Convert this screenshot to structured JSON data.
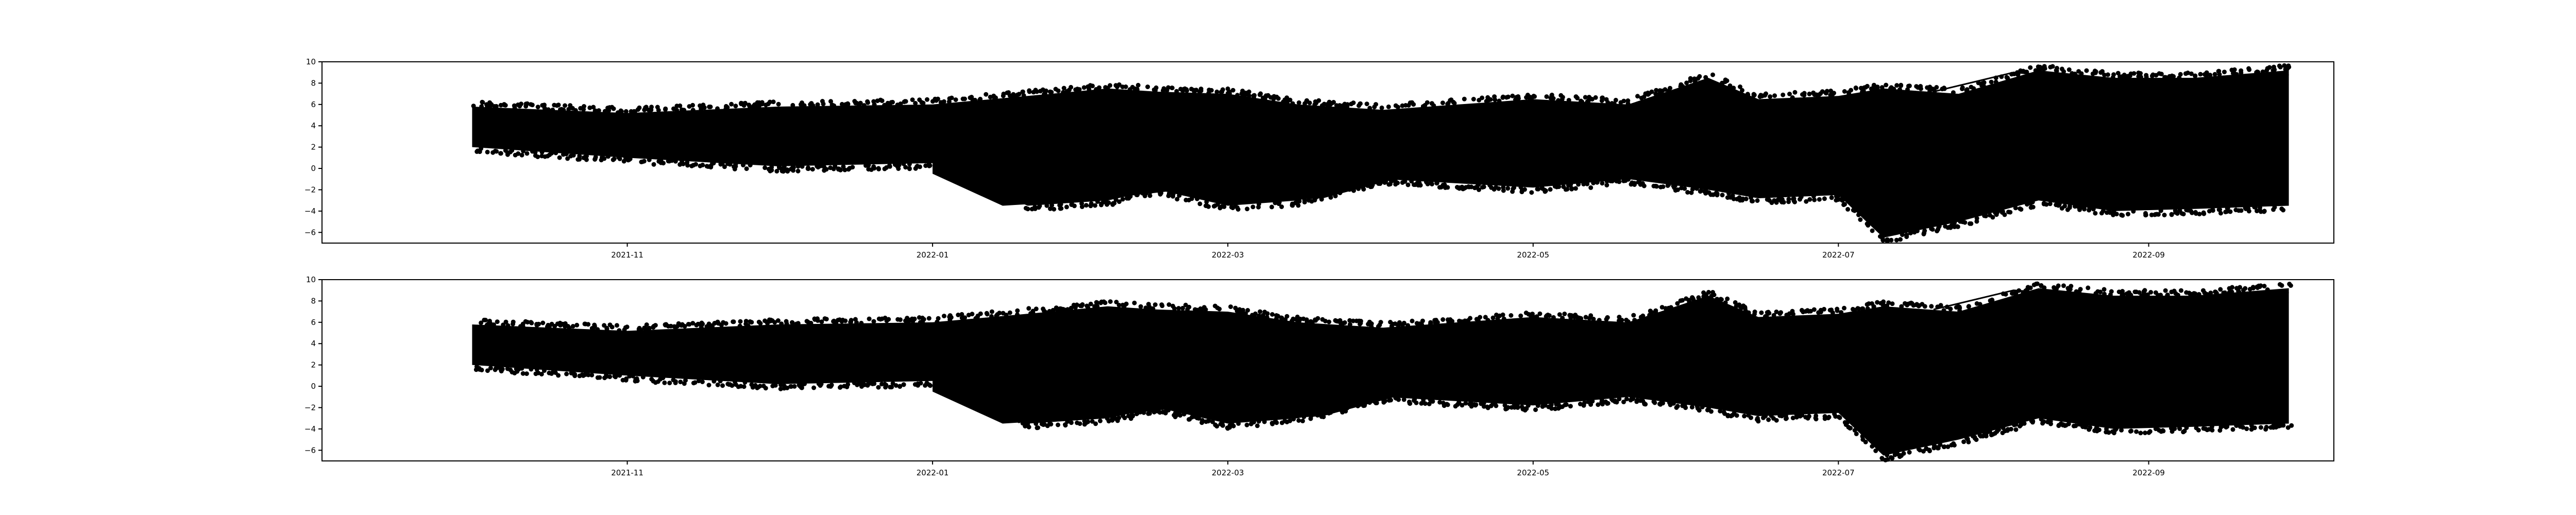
{
  "chart_data": [
    {
      "type": "scatter",
      "title": "",
      "xlabel": "",
      "ylabel": "",
      "grid": false,
      "marker_color": "#000000",
      "xlim": [
        "2021-09-01",
        "2022-10-08"
      ],
      "ylim": [
        -7,
        10
      ],
      "x_ticks": [
        "2021-11",
        "2022-01",
        "2022-03",
        "2022-05",
        "2022-07",
        "2022-09"
      ],
      "y_ticks": [
        -6,
        -4,
        -2,
        0,
        2,
        4,
        6,
        8,
        10
      ],
      "envelope": {
        "dates": [
          "2021-10-01",
          "2021-11-01",
          "2021-12-01",
          "2022-01-01",
          "2022-01-20",
          "2022-02-05",
          "2022-02-15",
          "2022-03-01",
          "2022-03-15",
          "2022-04-01",
          "2022-05-01",
          "2022-05-20",
          "2022-06-05",
          "2022-06-15",
          "2022-07-01",
          "2022-07-10",
          "2022-07-25",
          "2022-08-10",
          "2022-08-25",
          "2022-09-10",
          "2022-09-29"
        ],
        "upper": [
          5.8,
          5.2,
          5.8,
          6.0,
          6.8,
          7.5,
          7.2,
          7.0,
          6.0,
          5.5,
          6.5,
          6.0,
          8.5,
          6.5,
          6.8,
          7.5,
          7.0,
          9.2,
          8.5,
          8.5,
          9.2
        ],
        "lower": [
          2.0,
          1.0,
          0.2,
          0.5,
          -3.5,
          -3.0,
          -2.0,
          -3.5,
          -3.0,
          -1.0,
          -1.8,
          -1.0,
          -2.0,
          -2.8,
          -2.5,
          -6.5,
          -5.0,
          -3.0,
          -4.0,
          -3.8,
          -3.5
        ]
      },
      "secondary_band": {
        "dates": [
          "2022-01-01",
          "2022-01-15",
          "2022-02-01",
          "2022-02-20",
          "2022-03-05",
          "2022-03-20",
          "2022-04-05"
        ],
        "upper": [
          0.5,
          -0.5,
          -1.0,
          -0.5,
          -0.5,
          -0.2,
          0.0
        ],
        "lower": [
          -0.5,
          -3.5,
          -3.0,
          -2.0,
          -3.2,
          -2.8,
          -0.8
        ]
      },
      "upper_branch": {
        "dates": [
          "2022-07-20",
          "2022-08-05",
          "2022-08-20",
          "2022-09-05",
          "2022-09-29"
        ],
        "values": [
          7.2,
          9.0,
          8.5,
          8.0,
          8.8
        ]
      }
    },
    {
      "type": "scatter",
      "title": "",
      "xlabel": "",
      "ylabel": "",
      "grid": false,
      "marker_color": "#000000",
      "xlim": [
        "2021-09-01",
        "2022-10-08"
      ],
      "ylim": [
        -7,
        10
      ],
      "x_ticks": [
        "2021-11",
        "2022-01",
        "2022-03",
        "2022-05",
        "2022-07",
        "2022-09"
      ],
      "y_ticks": [
        -6,
        -4,
        -2,
        0,
        2,
        4,
        6,
        8,
        10
      ],
      "envelope": {
        "dates": [
          "2021-10-01",
          "2021-11-01",
          "2021-12-01",
          "2022-01-01",
          "2022-01-20",
          "2022-02-05",
          "2022-02-15",
          "2022-03-01",
          "2022-03-15",
          "2022-04-01",
          "2022-05-01",
          "2022-05-20",
          "2022-06-05",
          "2022-06-15",
          "2022-07-01",
          "2022-07-10",
          "2022-07-25",
          "2022-08-10",
          "2022-08-25",
          "2022-09-10",
          "2022-09-29"
        ],
        "upper": [
          5.8,
          5.2,
          5.8,
          6.0,
          6.8,
          7.5,
          7.2,
          7.0,
          6.0,
          5.5,
          6.5,
          6.0,
          8.5,
          6.5,
          6.8,
          7.5,
          7.0,
          9.2,
          8.5,
          8.5,
          9.2
        ],
        "lower": [
          2.0,
          1.0,
          0.2,
          0.5,
          -3.5,
          -3.0,
          -2.0,
          -3.5,
          -3.0,
          -1.0,
          -1.8,
          -1.0,
          -2.0,
          -2.8,
          -2.5,
          -6.5,
          -5.0,
          -3.0,
          -4.0,
          -3.8,
          -3.5
        ]
      },
      "secondary_band": {
        "dates": [
          "2022-01-01",
          "2022-01-15",
          "2022-02-01",
          "2022-02-20",
          "2022-03-05",
          "2022-03-20",
          "2022-04-05"
        ],
        "upper": [
          0.5,
          -0.5,
          -1.0,
          -0.5,
          -0.5,
          -0.2,
          0.0
        ],
        "lower": [
          -0.5,
          -3.5,
          -3.0,
          -2.0,
          -3.2,
          -2.8,
          -0.8
        ]
      },
      "upper_branch": {
        "dates": [
          "2022-07-20",
          "2022-08-05",
          "2022-08-20",
          "2022-09-05",
          "2022-09-29"
        ],
        "values": [
          7.2,
          9.0,
          8.5,
          8.0,
          8.8
        ]
      }
    }
  ]
}
